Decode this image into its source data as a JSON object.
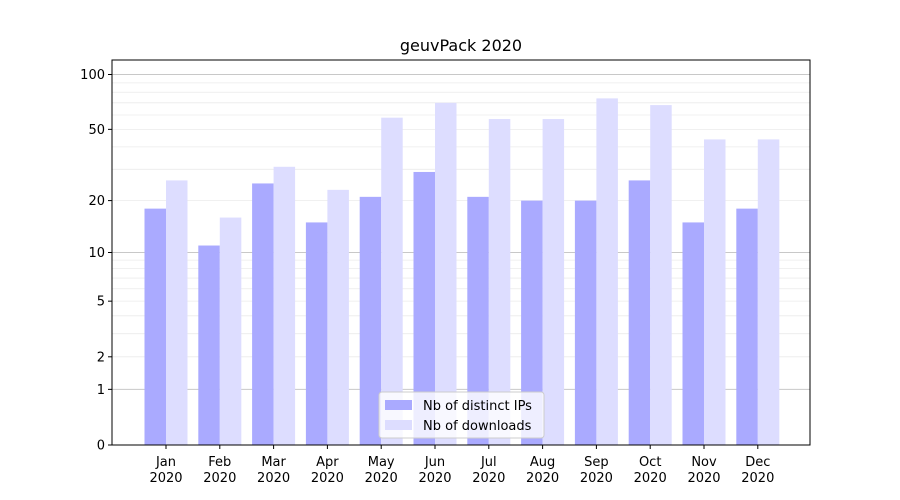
{
  "chart_data": {
    "type": "bar",
    "title": "geuvPack 2020",
    "xlabel": "",
    "ylabel": "",
    "yscale": "log1p",
    "yticks": [
      0,
      1,
      2,
      5,
      10,
      20,
      50,
      100
    ],
    "ylim": [
      0,
      120
    ],
    "grid": true,
    "legend_position": "bottom-center",
    "categories": [
      "Jan\n2020",
      "Feb\n2020",
      "Mar\n2020",
      "Apr\n2020",
      "May\n2020",
      "Jun\n2020",
      "Jul\n2020",
      "Aug\n2020",
      "Sep\n2020",
      "Oct\n2020",
      "Nov\n2020",
      "Dec\n2020"
    ],
    "series": [
      {
        "name": "Nb of distinct IPs",
        "color": "#aaaaff",
        "values": [
          18,
          11,
          25,
          15,
          21,
          29,
          21,
          20,
          20,
          26,
          15,
          18
        ]
      },
      {
        "name": "Nb of downloads",
        "color": "#ddddff",
        "values": [
          26,
          16,
          31,
          23,
          58,
          70,
          57,
          57,
          74,
          68,
          44,
          44
        ]
      }
    ]
  }
}
